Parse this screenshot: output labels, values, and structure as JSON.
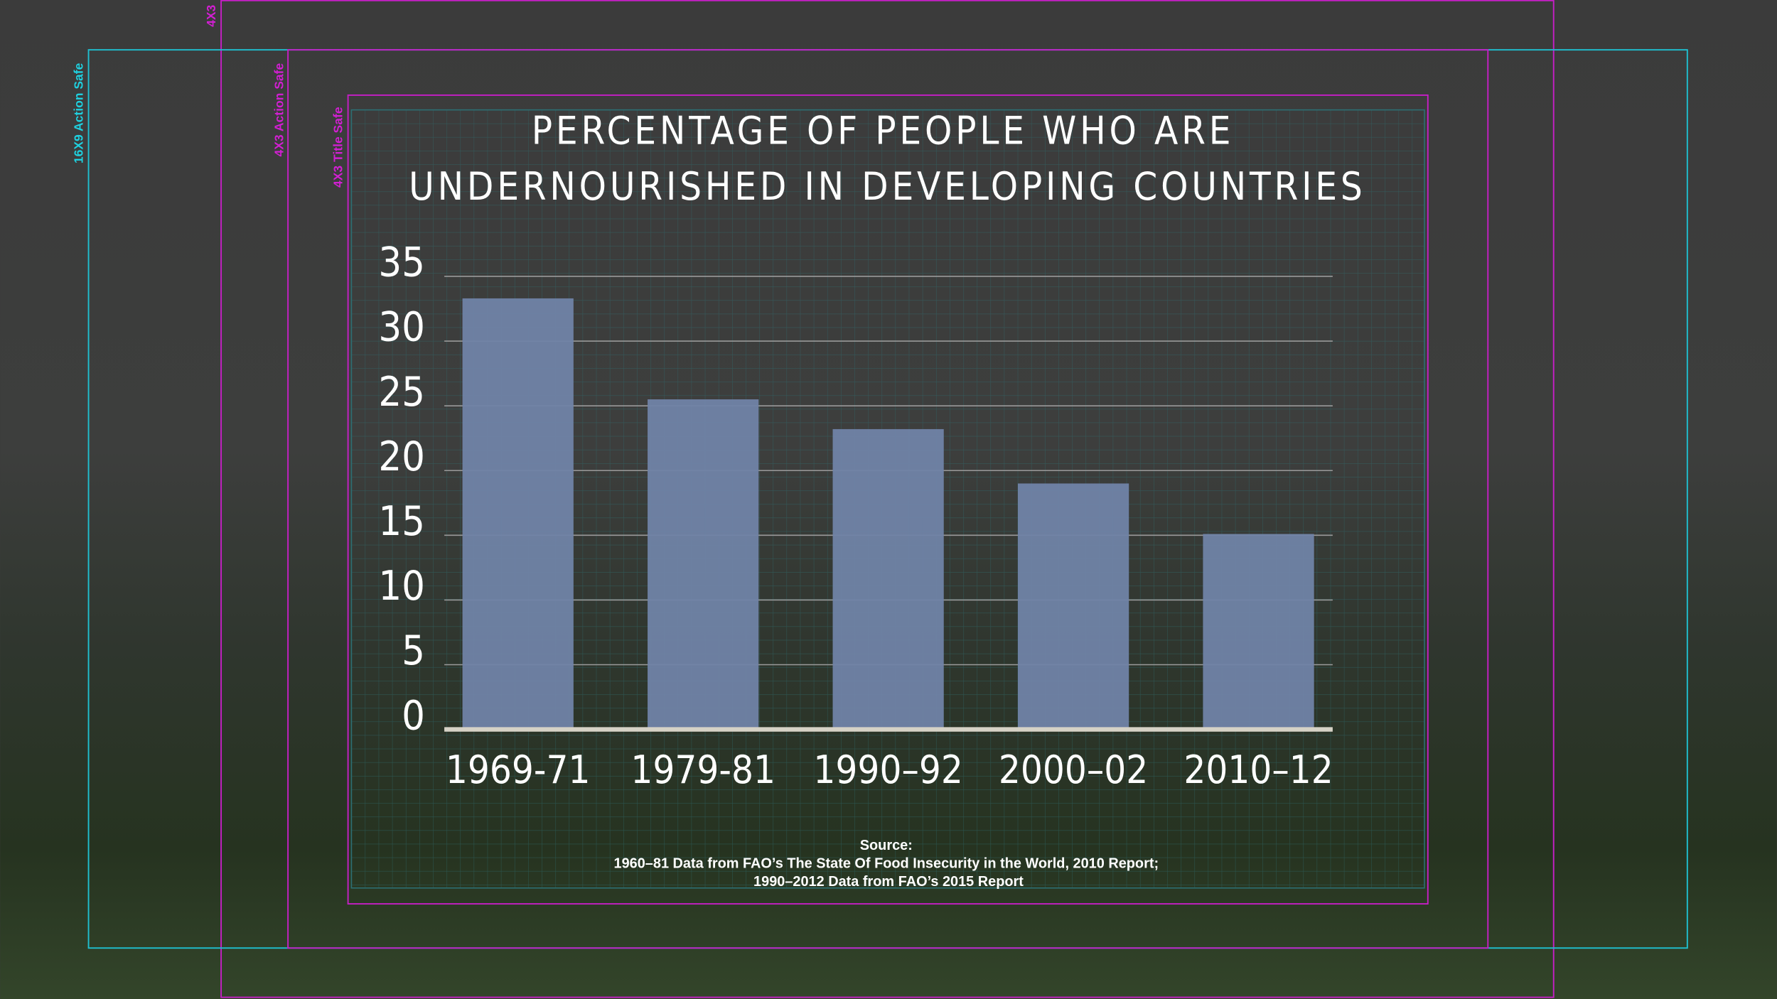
{
  "chart_data": {
    "type": "bar",
    "title": [
      "PERCENTAGE OF PEOPLE WHO ARE",
      "UNDERNOURISHED IN DEVELOPING COUNTRIES"
    ],
    "categories": [
      "1969-71",
      "1979-81",
      "1990–92",
      "2000–02",
      "2010–12"
    ],
    "values": [
      33.3,
      25.5,
      23.2,
      19,
      15.1
    ],
    "color": "#7083a6",
    "ylim": [
      0,
      35
    ],
    "yticks": [
      0,
      5,
      10,
      15,
      20,
      25,
      30,
      35
    ],
    "grid": true,
    "source": [
      "Source:",
      "1960–81 Data from FAO’s The State Of Food Insecurity in the World, 2010 Report;",
      "1990–2012 Data from FAO’s 2015 Report"
    ]
  },
  "overlay_labels": {
    "safe_16x9_action": "16X9 Action Safe",
    "safe_4x3_action": "4X3 Action Safe",
    "safe_4x3_title": "4X3 Title Safe",
    "frame_4x3": "4X3"
  }
}
